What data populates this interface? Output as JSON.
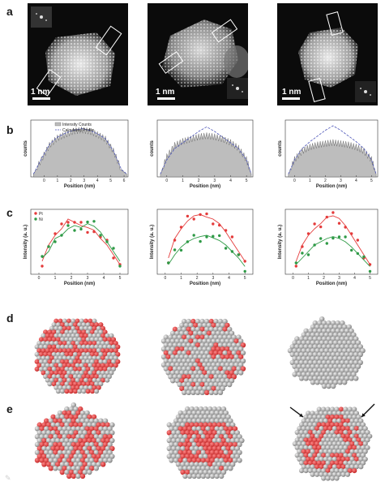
{
  "panel_labels": {
    "a": "a",
    "b": "b",
    "c": "c",
    "d": "d",
    "e": "e"
  },
  "stem_images": [
    {
      "scalebar": "1 nm"
    },
    {
      "scalebar": "1 nm"
    },
    {
      "scalebar": "1 nm"
    }
  ],
  "row_b": {
    "legend": {
      "intensity": "Intensity Counts",
      "calculated": "Calculated Profile"
    },
    "ylabel": "counts",
    "xlabel": "Position (nm)"
  },
  "row_c": {
    "legend": {
      "pt": "Pt",
      "ni": "Ni"
    },
    "ylabel": "Intensity (a. u.)",
    "xlabel": "Position (nm)"
  },
  "colors": {
    "pt": "#e43b3b",
    "ni": "#2e9a46",
    "profile_fill": "#bdbdbd",
    "calc_line": "#4c55b8"
  },
  "chart_data": [
    {
      "type": "area",
      "title": "",
      "xlabel": "Position (nm)",
      "ylabel": "counts",
      "x_ticks": [
        0,
        1,
        2,
        3,
        4,
        5,
        6
      ],
      "xlim": [
        -1,
        6.3
      ],
      "series": [
        {
          "name": "Intensity Counts",
          "x": [
            -0.8,
            -0.2,
            0.4,
            1.0,
            1.6,
            2.2,
            2.8,
            3.4,
            4.0,
            4.6,
            5.2,
            5.8,
            6.2
          ],
          "values": [
            0.05,
            0.3,
            0.55,
            0.68,
            0.74,
            0.8,
            0.82,
            0.8,
            0.74,
            0.66,
            0.45,
            0.12,
            0.05
          ]
        },
        {
          "name": "Calculated Profile",
          "x": [
            -0.8,
            -0.2,
            0.4,
            1.0,
            1.6,
            2.2,
            2.8,
            3.4,
            4.0,
            4.6,
            5.2,
            5.8,
            6.2
          ],
          "values": [
            0.05,
            0.32,
            0.57,
            0.7,
            0.77,
            0.82,
            0.85,
            0.82,
            0.76,
            0.67,
            0.46,
            0.13,
            0.05
          ]
        }
      ]
    },
    {
      "type": "area",
      "title": "",
      "xlabel": "Position (nm)",
      "ylabel": "counts",
      "x_ticks": [
        0,
        1,
        2,
        3,
        4,
        5
      ],
      "xlim": [
        -0.6,
        5.4
      ],
      "series": [
        {
          "name": "Intensity Counts",
          "x": [
            -0.4,
            0.0,
            0.5,
            1.0,
            1.5,
            2.0,
            2.5,
            3.0,
            3.5,
            4.0,
            4.5,
            5.0,
            5.3
          ],
          "values": [
            0.05,
            0.35,
            0.55,
            0.62,
            0.66,
            0.7,
            0.72,
            0.7,
            0.66,
            0.6,
            0.5,
            0.3,
            0.05
          ]
        },
        {
          "name": "Calculated Profile",
          "x": [
            -0.4,
            0.0,
            0.5,
            1.0,
            1.5,
            2.0,
            2.5,
            3.0,
            3.5,
            4.0,
            4.5,
            5.0,
            5.3
          ],
          "values": [
            0.05,
            0.3,
            0.5,
            0.6,
            0.7,
            0.8,
            0.88,
            0.8,
            0.7,
            0.6,
            0.5,
            0.3,
            0.05
          ]
        }
      ]
    },
    {
      "type": "area",
      "title": "",
      "xlabel": "Position (nm)",
      "ylabel": "counts",
      "x_ticks": [
        0,
        1,
        2,
        3,
        4,
        5
      ],
      "xlim": [
        -0.6,
        5.4
      ],
      "series": [
        {
          "name": "Intensity Counts",
          "x": [
            -0.4,
            0.0,
            0.5,
            1.0,
            1.5,
            2.0,
            2.5,
            3.0,
            3.5,
            4.0,
            4.5,
            5.0,
            5.3
          ],
          "values": [
            0.05,
            0.3,
            0.45,
            0.52,
            0.56,
            0.58,
            0.6,
            0.58,
            0.56,
            0.52,
            0.45,
            0.3,
            0.05
          ]
        },
        {
          "name": "Calculated Profile",
          "x": [
            -0.4,
            0.0,
            0.5,
            1.0,
            1.5,
            2.0,
            2.5,
            3.0,
            3.5,
            4.0,
            4.5,
            5.0,
            5.3
          ],
          "values": [
            0.05,
            0.3,
            0.5,
            0.62,
            0.72,
            0.82,
            0.9,
            0.82,
            0.72,
            0.62,
            0.5,
            0.3,
            0.05
          ]
        }
      ]
    },
    {
      "type": "scatter",
      "title": "",
      "xlabel": "Position (nm)",
      "ylabel": "Intensity (a. u.)",
      "x_ticks": [
        0,
        1,
        2,
        3,
        4,
        5
      ],
      "xlim": [
        -0.5,
        5.5
      ],
      "series": [
        {
          "name": "Pt",
          "x": [
            0.2,
            0.6,
            1.0,
            1.4,
            1.8,
            2.2,
            2.6,
            3.0,
            3.4,
            3.8,
            4.2,
            4.6,
            5.0
          ],
          "values": [
            0.2,
            0.45,
            0.6,
            0.7,
            0.85,
            0.8,
            0.75,
            0.72,
            0.68,
            0.55,
            0.45,
            0.3,
            0.15
          ]
        },
        {
          "name": "Ni",
          "x": [
            0.2,
            0.6,
            1.0,
            1.4,
            1.8,
            2.2,
            2.6,
            3.0,
            3.4,
            3.8,
            4.2,
            4.6,
            5.0
          ],
          "values": [
            0.25,
            0.35,
            0.55,
            0.6,
            0.7,
            0.75,
            0.72,
            0.78,
            0.74,
            0.65,
            0.5,
            0.35,
            0.2
          ]
        }
      ]
    },
    {
      "type": "scatter",
      "title": "",
      "xlabel": "Position (nm)",
      "ylabel": "Intensity (a. u.)",
      "x_ticks": [
        0,
        1,
        2,
        3,
        4,
        5
      ],
      "xlim": [
        -0.5,
        5.5
      ],
      "series": [
        {
          "name": "Pt",
          "x": [
            0.2,
            0.6,
            1.0,
            1.4,
            1.8,
            2.2,
            2.6,
            3.0,
            3.4,
            3.8,
            4.2,
            4.6,
            5.0
          ],
          "values": [
            0.25,
            0.55,
            0.7,
            0.82,
            0.9,
            0.92,
            0.88,
            0.85,
            0.78,
            0.65,
            0.5,
            0.35,
            0.2
          ]
        },
        {
          "name": "Ni",
          "x": [
            0.2,
            0.6,
            1.0,
            1.4,
            1.8,
            2.2,
            2.6,
            3.0,
            3.4,
            3.8,
            4.2,
            4.6,
            5.0
          ],
          "values": [
            0.15,
            0.3,
            0.42,
            0.5,
            0.55,
            0.58,
            0.6,
            0.56,
            0.52,
            0.45,
            0.35,
            0.25,
            0.12
          ]
        }
      ]
    },
    {
      "type": "scatter",
      "title": "",
      "xlabel": "Position (nm)",
      "ylabel": "Intensity (a. u.)",
      "x_ticks": [
        0,
        1,
        2,
        3,
        4,
        5
      ],
      "xlim": [
        -0.5,
        5.5
      ],
      "series": [
        {
          "name": "Pt",
          "x": [
            0.2,
            0.6,
            1.0,
            1.4,
            1.8,
            2.2,
            2.6,
            3.0,
            3.4,
            3.8,
            4.2,
            4.6,
            5.0
          ],
          "values": [
            0.2,
            0.45,
            0.6,
            0.7,
            0.78,
            0.88,
            0.9,
            0.86,
            0.75,
            0.6,
            0.45,
            0.3,
            0.15
          ]
        },
        {
          "name": "Ni",
          "x": [
            0.2,
            0.6,
            1.0,
            1.4,
            1.8,
            2.2,
            2.6,
            3.0,
            3.4,
            3.8,
            4.2,
            4.6,
            5.0
          ],
          "values": [
            0.15,
            0.25,
            0.35,
            0.45,
            0.5,
            0.55,
            0.58,
            0.55,
            0.5,
            0.42,
            0.32,
            0.22,
            0.12
          ]
        }
      ]
    }
  ]
}
